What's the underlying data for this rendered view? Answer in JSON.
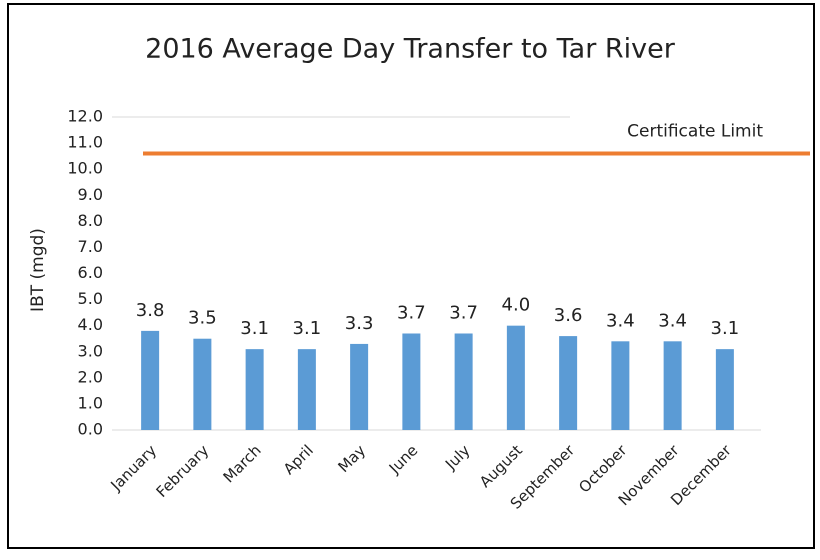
{
  "chart_data": {
    "type": "bar",
    "title": "2016 Average Day Transfer to Tar River",
    "y_label": "IBT (mgd)",
    "categories": [
      "January",
      "February",
      "March",
      "April",
      "May",
      "June",
      "July",
      "August",
      "September",
      "October",
      "November",
      "December"
    ],
    "values": [
      3.8,
      3.5,
      3.1,
      3.1,
      3.3,
      3.7,
      3.7,
      4.0,
      3.6,
      3.4,
      3.4,
      3.1
    ],
    "value_labels": [
      "3.8",
      "3.5",
      "3.1",
      "3.1",
      "3.3",
      "3.7",
      "3.7",
      "4.0",
      "3.6",
      "3.4",
      "3.4",
      "3.1"
    ],
    "color": "#5b9bd5",
    "reference_line": {
      "name": "Certificate Limit",
      "value": 10.6,
      "color": "#ed7d31"
    },
    "ylim": [
      0,
      12
    ],
    "yticks": [
      {
        "value": 0,
        "label": "0.0"
      },
      {
        "value": 1,
        "label": "1.0"
      },
      {
        "value": 2,
        "label": "2.0"
      },
      {
        "value": 3,
        "label": "3.0"
      },
      {
        "value": 4,
        "label": "4.0"
      },
      {
        "value": 5,
        "label": "5.0"
      },
      {
        "value": 6,
        "label": "6.0"
      },
      {
        "value": 7,
        "label": "7.0"
      },
      {
        "value": 8,
        "label": "8.0"
      },
      {
        "value": 9,
        "label": "9.0"
      },
      {
        "value": 10,
        "label": "10.0"
      },
      {
        "value": 11,
        "label": "11.0"
      },
      {
        "value": 12,
        "label": "12.0"
      }
    ],
    "grid": false
  }
}
